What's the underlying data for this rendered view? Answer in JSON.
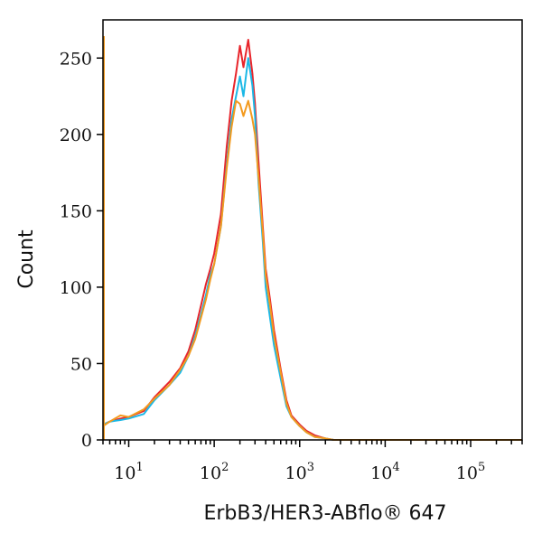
{
  "chart_data": {
    "type": "line",
    "title": "",
    "xlabel": "ErbB3/HER3-ABflo® 647",
    "ylabel": "Count",
    "xscale": "log",
    "xlim": [
      5,
      400000
    ],
    "ylim": [
      0,
      275
    ],
    "grid": false,
    "legend": "none",
    "x_ticks": [
      {
        "exp": 1,
        "base": "10",
        "sup": "1"
      },
      {
        "exp": 2,
        "base": "10",
        "sup": "2"
      },
      {
        "exp": 3,
        "base": "10",
        "sup": "3"
      },
      {
        "exp": 4,
        "base": "10",
        "sup": "4"
      },
      {
        "exp": 5,
        "base": "10",
        "sup": "5"
      }
    ],
    "y_ticks": [
      0,
      50,
      100,
      150,
      200,
      250
    ],
    "series": [
      {
        "color": "#e8252b",
        "x": [
          5,
          6,
          8,
          10,
          15,
          20,
          30,
          40,
          50,
          60,
          70,
          80,
          90,
          100,
          120,
          140,
          160,
          180,
          200,
          220,
          250,
          280,
          300,
          330,
          370,
          400,
          450,
          500,
          600,
          700,
          800,
          1000,
          1200,
          1500,
          2000,
          2500,
          3000,
          5000,
          10000,
          100000,
          400000
        ],
        "y": [
          10,
          12,
          14,
          15,
          19,
          28,
          38,
          47,
          58,
          72,
          88,
          102,
          112,
          122,
          148,
          192,
          222,
          240,
          258,
          244,
          262,
          240,
          220,
          182,
          140,
          112,
          92,
          72,
          46,
          26,
          16,
          10,
          6,
          3,
          1,
          0,
          0,
          0,
          0,
          0,
          0
        ]
      },
      {
        "color": "#1bb8e6",
        "x": [
          5,
          6,
          8,
          10,
          15,
          20,
          30,
          40,
          50,
          60,
          70,
          80,
          90,
          100,
          120,
          140,
          160,
          180,
          200,
          220,
          250,
          280,
          300,
          330,
          370,
          400,
          450,
          500,
          600,
          700,
          800,
          1000,
          1200,
          1500,
          2000,
          2500,
          3000,
          5000,
          10000,
          100000,
          400000
        ],
        "y": [
          10,
          12,
          13,
          14,
          17,
          26,
          36,
          44,
          55,
          68,
          82,
          95,
          108,
          115,
          140,
          180,
          210,
          225,
          238,
          225,
          250,
          232,
          212,
          168,
          130,
          100,
          80,
          62,
          40,
          22,
          15,
          9,
          5,
          2,
          1,
          0,
          0,
          0,
          0,
          0,
          0
        ]
      },
      {
        "color": "#f39a1e",
        "x": [
          5,
          6,
          8,
          10,
          15,
          20,
          30,
          40,
          50,
          60,
          70,
          80,
          90,
          100,
          120,
          140,
          160,
          180,
          200,
          220,
          250,
          280,
          300,
          330,
          370,
          400,
          450,
          500,
          600,
          700,
          800,
          1000,
          1200,
          1500,
          2000,
          2500,
          3000,
          5000,
          10000,
          100000,
          400000
        ],
        "y": [
          9,
          12,
          16,
          15,
          20,
          27,
          36,
          46,
          55,
          66,
          80,
          92,
          105,
          115,
          140,
          178,
          205,
          222,
          220,
          212,
          222,
          210,
          200,
          172,
          136,
          108,
          88,
          68,
          44,
          24,
          15,
          9,
          5,
          2,
          1,
          0,
          0,
          0,
          0,
          0,
          0
        ]
      }
    ]
  }
}
